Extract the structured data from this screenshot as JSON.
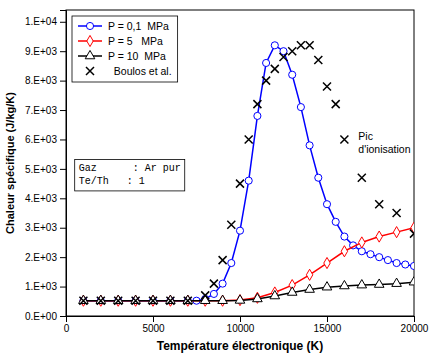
{
  "chart_data": {
    "type": "line",
    "x_label": "Température électronique (K)",
    "y_label": "Chaleur spécifique (J/kg/K)",
    "xlim": [
      0,
      20000
    ],
    "ylim": [
      0,
      10400
    ],
    "xticks": [
      0,
      5000,
      10000,
      15000,
      20000
    ],
    "yticks": [
      {
        "value": 0,
        "label": "0.E+00"
      },
      {
        "value": 1000,
        "label": "1.E+03"
      },
      {
        "value": 2000,
        "label": "2.E+03"
      },
      {
        "value": 3000,
        "label": "3.E+03"
      },
      {
        "value": 4000,
        "label": "4.E+03"
      },
      {
        "value": 5000,
        "label": "5.E+03"
      },
      {
        "value": 6000,
        "label": "6.E+03"
      },
      {
        "value": 7000,
        "label": "7.E+03"
      },
      {
        "value": 8000,
        "label": "8.E+03"
      },
      {
        "value": 9000,
        "label": "9.E+03"
      },
      {
        "value": 10000,
        "label": "1.E+04"
      }
    ],
    "grid": false,
    "legend": "upper left",
    "series": [
      {
        "name": "P = 0,1  MPa",
        "color": "#0000FF",
        "marker": "circle",
        "line_style": "solid",
        "x": [
          1000,
          2000,
          3000,
          4000,
          5000,
          6000,
          7000,
          7500,
          8000,
          8500,
          9000,
          9500,
          10000,
          10500,
          11000,
          11500,
          12000,
          12500,
          13000,
          13500,
          14000,
          14500,
          15000,
          15500,
          16000,
          16500,
          17000,
          17500,
          18000,
          18500,
          19000,
          19500,
          20000
        ],
        "values": [
          520,
          520,
          520,
          520,
          520,
          520,
          520,
          520,
          580,
          750,
          1100,
          1800,
          2900,
          4600,
          6800,
          8600,
          9200,
          9000,
          8200,
          7100,
          5800,
          4700,
          3800,
          3200,
          2700,
          2400,
          2200,
          2100,
          2000,
          1900,
          1800,
          1750,
          1700
        ]
      },
      {
        "name": "P = 5   MPa",
        "color": "#FF0000",
        "marker": "diamond",
        "line_style": "solid",
        "x": [
          1000,
          2000,
          3000,
          4000,
          5000,
          6000,
          7000,
          8000,
          9000,
          10000,
          11000,
          12000,
          13000,
          14000,
          15000,
          16000,
          17000,
          18000,
          19000,
          20000
        ],
        "values": [
          520,
          520,
          520,
          520,
          520,
          520,
          520,
          520,
          520,
          540,
          620,
          800,
          1050,
          1400,
          1800,
          2200,
          2500,
          2700,
          2850,
          3000
        ]
      },
      {
        "name": "P = 10  MPa",
        "color": "#000000",
        "marker": "triangle",
        "line_style": "solid",
        "x": [
          1000,
          2000,
          3000,
          4000,
          5000,
          6000,
          7000,
          8000,
          9000,
          10000,
          11000,
          12000,
          13000,
          14000,
          15000,
          16000,
          17000,
          18000,
          19000,
          20000
        ],
        "values": [
          520,
          520,
          520,
          520,
          520,
          520,
          520,
          520,
          520,
          530,
          580,
          680,
          800,
          900,
          980,
          1020,
          1050,
          1070,
          1100,
          1150
        ]
      },
      {
        "name": "  Boulos et al.",
        "color": "#000000",
        "marker": "x",
        "line_style": "none",
        "type": "scatter",
        "x": [
          1000,
          2000,
          3000,
          4000,
          5000,
          6000,
          7000,
          8000,
          8500,
          9000,
          9500,
          10000,
          10500,
          11000,
          11500,
          12000,
          12500,
          13000,
          13500,
          14000,
          14500,
          15000,
          15500,
          16000,
          17000,
          18000,
          19000,
          20000
        ],
        "values": [
          520,
          520,
          520,
          520,
          520,
          520,
          520,
          700,
          1100,
          1900,
          3100,
          4500,
          6000,
          7200,
          8000,
          8400,
          8800,
          9000,
          9200,
          9200,
          8700,
          7800,
          7200,
          6000,
          4700,
          3800,
          3500,
          2800
        ]
      }
    ],
    "annotations": [
      {
        "text": "Gaz      : Ar pur\nTe/Th   : 1"
      },
      {
        "text": "Pic\nd'ionisation",
        "x": 16800,
        "y": 6300
      }
    ]
  }
}
